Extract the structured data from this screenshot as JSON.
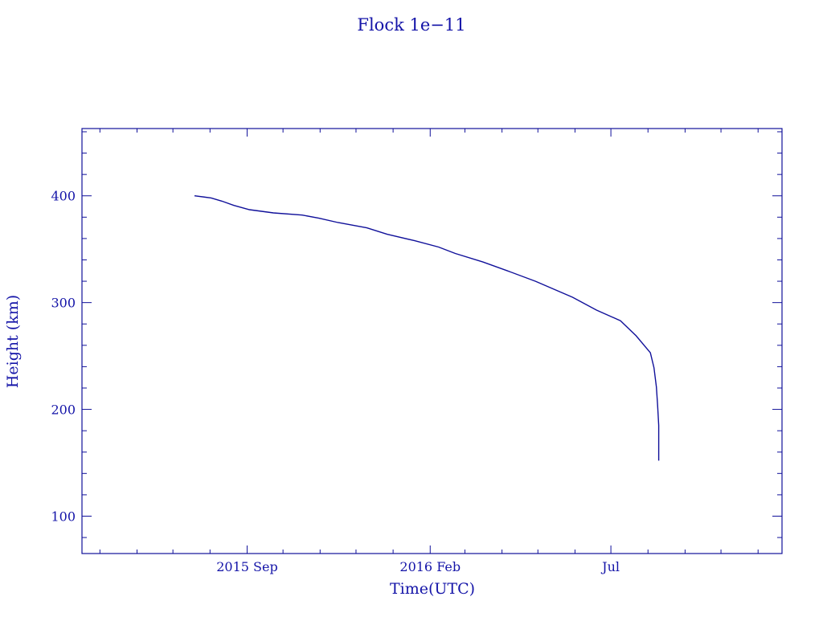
{
  "chart_data": {
    "type": "line",
    "title": "Flock 1e−11",
    "xlabel": "Time(UTC)",
    "ylabel": "Height (km)",
    "xlim": [
      "2015-04-16",
      "2016-11-21"
    ],
    "ylim": [
      65,
      463
    ],
    "x_ticks": [
      {
        "date": "2015-09-01",
        "label": "2015 Sep"
      },
      {
        "date": "2016-02-01",
        "label": "2016 Feb"
      },
      {
        "date": "2016-07-01",
        "label": "Jul"
      }
    ],
    "x_minor_ticks": "monthly",
    "y_ticks": [
      100,
      200,
      300,
      400
    ],
    "y_minor_step": 20,
    "grid": false,
    "color": "#10109a",
    "series": [
      {
        "x": [
          "2015-07-19",
          "2015-08-02",
          "2015-08-11",
          "2015-08-21",
          "2015-09-03",
          "2015-09-23",
          "2015-10-17",
          "2015-10-31",
          "2015-11-16",
          "2015-12-10",
          "2015-12-27",
          "2016-01-19",
          "2016-02-08",
          "2016-02-22",
          "2016-03-16",
          "2016-04-05",
          "2016-04-29",
          "2016-05-30",
          "2016-06-19",
          "2016-07-09",
          "2016-07-22",
          "2016-08-03",
          "2016-08-06",
          "2016-08-08",
          "2016-08-09",
          "2016-08-10",
          "2016-08-10"
        ],
        "y": [
          400,
          398,
          395,
          391,
          387,
          384,
          382,
          379,
          375,
          370,
          364,
          358,
          352,
          346,
          338,
          330,
          320,
          305,
          293,
          283,
          269,
          253,
          239,
          221,
          204,
          185,
          152
        ]
      }
    ]
  }
}
